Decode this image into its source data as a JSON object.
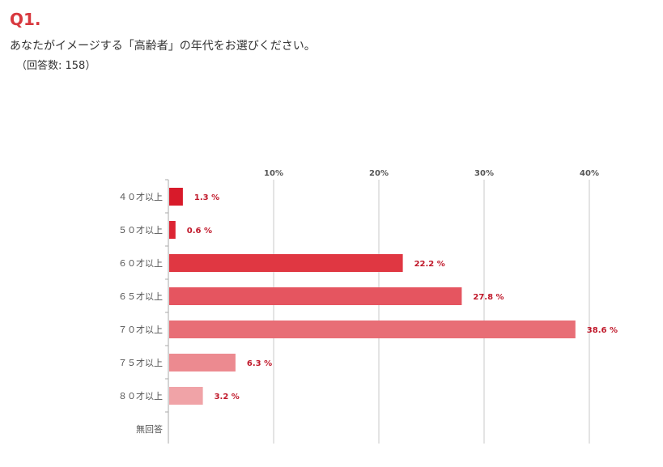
{
  "question": {
    "number": "Q1.",
    "text": "あなたがイメージする「高齢者」の年代をお選びください。",
    "count": "（回答数: 158）"
  },
  "chart_data": {
    "type": "bar",
    "orientation": "horizontal",
    "categories": [
      "４０才以上",
      "５０才以上",
      "６０才以上",
      "６５才以上",
      "７０才以上",
      "７５才以上",
      "８０才以上",
      "無回答"
    ],
    "values": [
      1.3,
      0.6,
      22.2,
      27.8,
      38.6,
      6.3,
      3.2,
      null
    ],
    "value_labels": [
      "1.3 %",
      "0.6 %",
      "22.2 %",
      "27.8 %",
      "38.6 %",
      "6.3 %",
      "3.2 %",
      ""
    ],
    "ticks": [
      10,
      20,
      30,
      40
    ],
    "tick_labels": [
      "10%",
      "20%",
      "30%",
      "40%"
    ],
    "xlim": [
      0,
      40
    ],
    "grid": true,
    "colors": [
      "#d81a2a",
      "#dc2433",
      "#e03742",
      "#e55560",
      "#e86e76",
      "#ec8a90",
      "#f0a3a7",
      "#f4b8bc"
    ],
    "label_color": "#c0182a",
    "grid_color": "#c8c8c8"
  }
}
